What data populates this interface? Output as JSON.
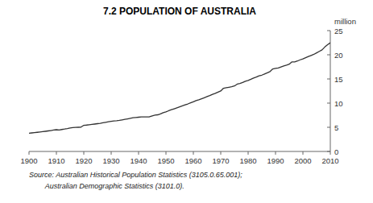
{
  "chart_data": {
    "type": "line",
    "title": "7.2   POPULATION OF AUSTRALIA",
    "ylabel": "million",
    "annotations": [
      "Source: Australian Historical Population Statistics (3105.0.65.001);",
      "        Australian Demographic Statistics (3101.0)."
    ],
    "color": "#333333",
    "xlim": [
      1900,
      2010
    ],
    "ylim": [
      0,
      25
    ],
    "xticks": [
      1900,
      1910,
      1920,
      1930,
      1940,
      1950,
      1960,
      1970,
      1980,
      1990,
      2000,
      2010
    ],
    "yticks": [
      0,
      5,
      10,
      15,
      20,
      25
    ],
    "x": [
      1900,
      1901,
      1902,
      1903,
      1904,
      1905,
      1906,
      1907,
      1908,
      1909,
      1910,
      1911,
      1912,
      1913,
      1914,
      1915,
      1916,
      1917,
      1918,
      1919,
      1920,
      1921,
      1922,
      1923,
      1924,
      1925,
      1926,
      1927,
      1928,
      1929,
      1930,
      1931,
      1932,
      1933,
      1934,
      1935,
      1936,
      1937,
      1938,
      1939,
      1940,
      1941,
      1942,
      1943,
      1944,
      1945,
      1946,
      1947,
      1948,
      1949,
      1950,
      1951,
      1952,
      1953,
      1954,
      1955,
      1956,
      1957,
      1958,
      1959,
      1960,
      1961,
      1962,
      1963,
      1964,
      1965,
      1966,
      1967,
      1968,
      1969,
      1970,
      1971,
      1972,
      1973,
      1974,
      1975,
      1976,
      1977,
      1978,
      1979,
      1980,
      1981,
      1982,
      1983,
      1984,
      1985,
      1986,
      1987,
      1988,
      1989,
      1990,
      1991,
      1992,
      1993,
      1994,
      1995,
      1996,
      1997,
      1998,
      1999,
      2000,
      2001,
      2002,
      2003,
      2004,
      2005,
      2006,
      2007,
      2008,
      2009,
      2010
    ],
    "values": [
      3.77,
      3.83,
      3.9,
      3.96,
      4.03,
      4.1,
      4.17,
      4.25,
      4.33,
      4.42,
      4.5,
      4.45,
      4.54,
      4.63,
      4.74,
      4.87,
      4.94,
      4.98,
      5.0,
      5.03,
      5.41,
      5.46,
      5.53,
      5.6,
      5.67,
      5.75,
      5.83,
      5.93,
      6.03,
      6.13,
      6.24,
      6.31,
      6.36,
      6.43,
      6.53,
      6.63,
      6.74,
      6.86,
      6.99,
      7.03,
      7.08,
      7.14,
      7.14,
      7.15,
      7.17,
      7.37,
      7.52,
      7.58,
      7.77,
      8.01,
      8.18,
      8.42,
      8.63,
      8.82,
      9.02,
      9.22,
      9.42,
      9.63,
      9.83,
      10.06,
      10.28,
      10.51,
      10.7,
      10.91,
      11.12,
      11.34,
      11.55,
      11.8,
      12.01,
      12.26,
      12.51,
      13.07,
      13.18,
      13.28,
      13.39,
      13.55,
      13.92,
      14.07,
      14.26,
      14.52,
      14.7,
      14.93,
      15.18,
      15.4,
      15.65,
      15.79,
      16.02,
      16.26,
      16.53,
      17.07,
      17.17,
      17.28,
      17.49,
      17.67,
      17.84,
      18.05,
      18.53,
      18.53,
      18.71,
      18.96,
      19.16,
      19.41,
      19.65,
      19.87,
      20.09,
      20.39,
      20.7,
      21.02,
      21.61,
      22.07,
      22.48
    ]
  }
}
